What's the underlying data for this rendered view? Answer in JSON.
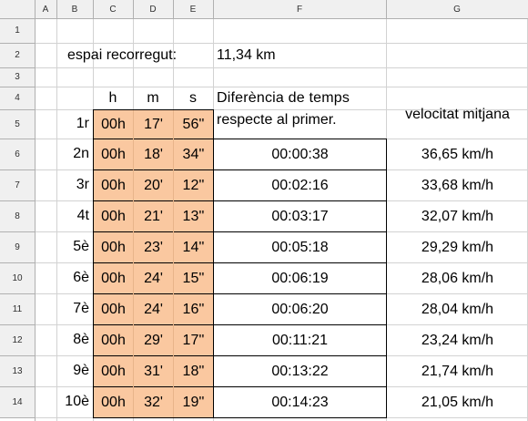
{
  "columns": [
    "A",
    "B",
    "C",
    "D",
    "E",
    "F",
    "G"
  ],
  "rows": [
    "1",
    "2",
    "3",
    "4",
    "5",
    "6",
    "7",
    "8",
    "9",
    "10",
    "11",
    "12",
    "13",
    "14"
  ],
  "distance": {
    "label": "espai recorregut:",
    "value": "11,34 km"
  },
  "headers": {
    "h": "h",
    "m": "m",
    "s": "s",
    "diff_line1": "Diferència de temps",
    "diff_line2": "respecte al primer.",
    "speed": "velocitat mitjana"
  },
  "colors": {
    "time_fill": "#fac8a0",
    "header_bg": "#f0f0f0",
    "grid": "#d2d2d2"
  },
  "table": [
    {
      "pos": "1r",
      "h": "00h",
      "m": "17'",
      "s": "56''",
      "diff": "",
      "speed": ""
    },
    {
      "pos": "2n",
      "h": "00h",
      "m": "18'",
      "s": "34''",
      "diff": "00:00:38",
      "speed": "36,65 km/h"
    },
    {
      "pos": "3r",
      "h": "00h",
      "m": "20'",
      "s": "12''",
      "diff": "00:02:16",
      "speed": "33,68 km/h"
    },
    {
      "pos": "4t",
      "h": "00h",
      "m": "21'",
      "s": "13''",
      "diff": "00:03:17",
      "speed": "32,07 km/h"
    },
    {
      "pos": "5è",
      "h": "00h",
      "m": "23'",
      "s": "14''",
      "diff": "00:05:18",
      "speed": "29,29 km/h"
    },
    {
      "pos": "6è",
      "h": "00h",
      "m": "24'",
      "s": "15''",
      "diff": "00:06:19",
      "speed": "28,06 km/h"
    },
    {
      "pos": "7è",
      "h": "00h",
      "m": "24'",
      "s": "16''",
      "diff": "00:06:20",
      "speed": "28,04 km/h"
    },
    {
      "pos": "8è",
      "h": "00h",
      "m": "29'",
      "s": "17''",
      "diff": "00:11:21",
      "speed": "23,24 km/h"
    },
    {
      "pos": "9è",
      "h": "00h",
      "m": "31'",
      "s": "18''",
      "diff": "00:13:22",
      "speed": "21,74 km/h"
    },
    {
      "pos": "10è",
      "h": "00h",
      "m": "32'",
      "s": "19''",
      "diff": "00:14:23",
      "speed": "21,05 km/h"
    }
  ]
}
